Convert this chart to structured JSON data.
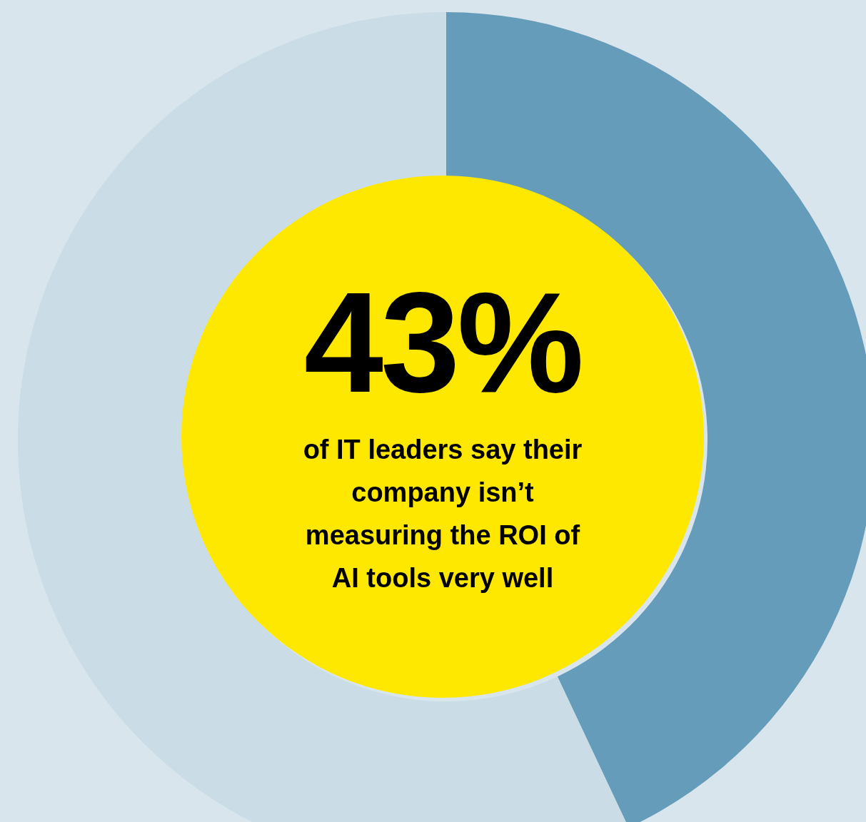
{
  "chart_data": {
    "type": "donut",
    "categories": [
      null,
      null
    ],
    "values": [
      43,
      57
    ],
    "colors": [
      "#659cb9",
      "#cadce6"
    ],
    "value_labels": [
      "43%",
      null
    ],
    "annotations": [
      "of IT leaders say their company isn’t measuring the ROI of AI tools very well"
    ]
  }
}
